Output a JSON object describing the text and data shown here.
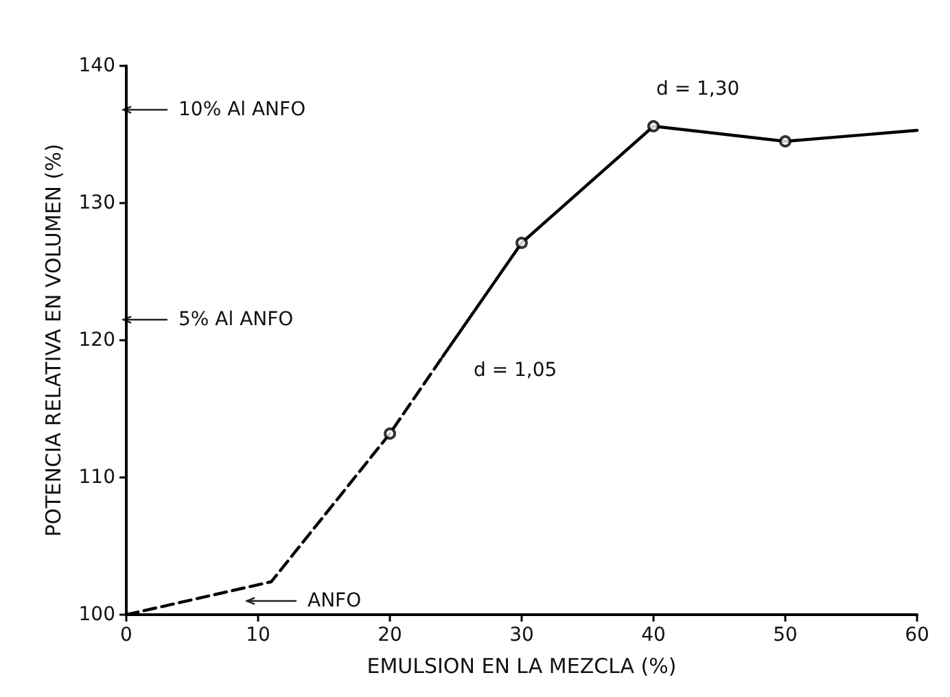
{
  "chart_data": {
    "type": "line",
    "xlabel": "EMULSION EN LA MEZCLA (%)",
    "ylabel": "POTENCIA RELATIVA EN VOLUMEN (%)",
    "xlim": [
      0,
      60
    ],
    "ylim": [
      100,
      140
    ],
    "xticks": [
      0,
      10,
      20,
      30,
      40,
      50,
      60
    ],
    "yticks": [
      100,
      110,
      120,
      130,
      140
    ],
    "grid": false,
    "series": [
      {
        "color": "#000000",
        "line_style": "dashed",
        "marker": "none",
        "x": [
          0,
          11,
          20,
          24
        ],
        "values": [
          100,
          102.4,
          113.2,
          118.8
        ]
      },
      {
        "color": "#000000",
        "line_style": "solid",
        "marker": "none",
        "x": [
          24,
          30,
          40,
          50,
          60
        ],
        "values": [
          118.8,
          127.1,
          135.6,
          134.5,
          135.3
        ]
      },
      {
        "type": "scatter",
        "color": "#000000",
        "marker": "circle",
        "x": [
          20,
          30,
          40,
          50
        ],
        "values": [
          113.2,
          127.1,
          135.6,
          134.5
        ]
      }
    ],
    "annotations": [
      "10% Al ANFO",
      "5% Al ANFO",
      "ANFO",
      "d = 1,05",
      "d = 1,30"
    ]
  }
}
